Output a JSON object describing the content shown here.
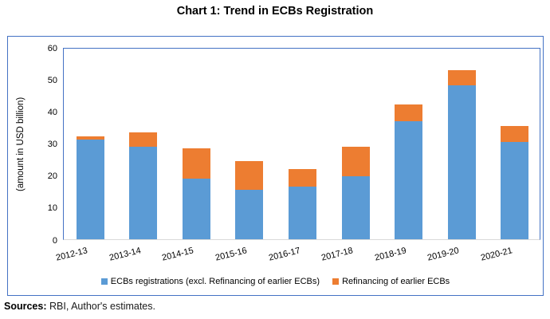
{
  "title": "Chart 1: Trend in ECBs Registration",
  "chart_data": {
    "type": "bar",
    "stacked": true,
    "title": "Chart 1: Trend in ECBs Registration",
    "categories": [
      "2012-13",
      "2013-14",
      "2014-15",
      "2015-16",
      "2016-17",
      "2017-18",
      "2018-19",
      "2019-20",
      "2020-21"
    ],
    "series": [
      {
        "name": "ECBs registrations (excl. Refinancing of earlier ECBs)",
        "color": "#5B9BD5",
        "values": [
          31.1,
          29.0,
          19.0,
          15.5,
          16.5,
          19.7,
          36.8,
          48.0,
          30.4
        ]
      },
      {
        "name": "Refinancing of earlier ECBs",
        "color": "#ED7D31",
        "values": [
          0.9,
          4.3,
          9.4,
          8.9,
          5.5,
          9.2,
          5.2,
          4.8,
          5.0
        ]
      }
    ],
    "totals": [
      32.0,
      33.3,
      28.4,
      24.4,
      22.0,
      28.9,
      42.0,
      52.8,
      35.4
    ],
    "xlabel": "",
    "ylabel": "(amount in USD billion)",
    "ylim": [
      0,
      60
    ],
    "yticks": [
      0,
      10,
      20,
      30,
      40,
      50,
      60
    ],
    "grid": false,
    "legend_position": "bottom"
  },
  "footer": {
    "label": "Sources:",
    "text": "RBI, Author's estimates."
  },
  "colors": {
    "chart_border": "#4472C4",
    "axis_baseline": "#D9D9D9",
    "bar_blue": "#5B9BD5",
    "bar_orange": "#ED7D31",
    "text": "#000000"
  }
}
